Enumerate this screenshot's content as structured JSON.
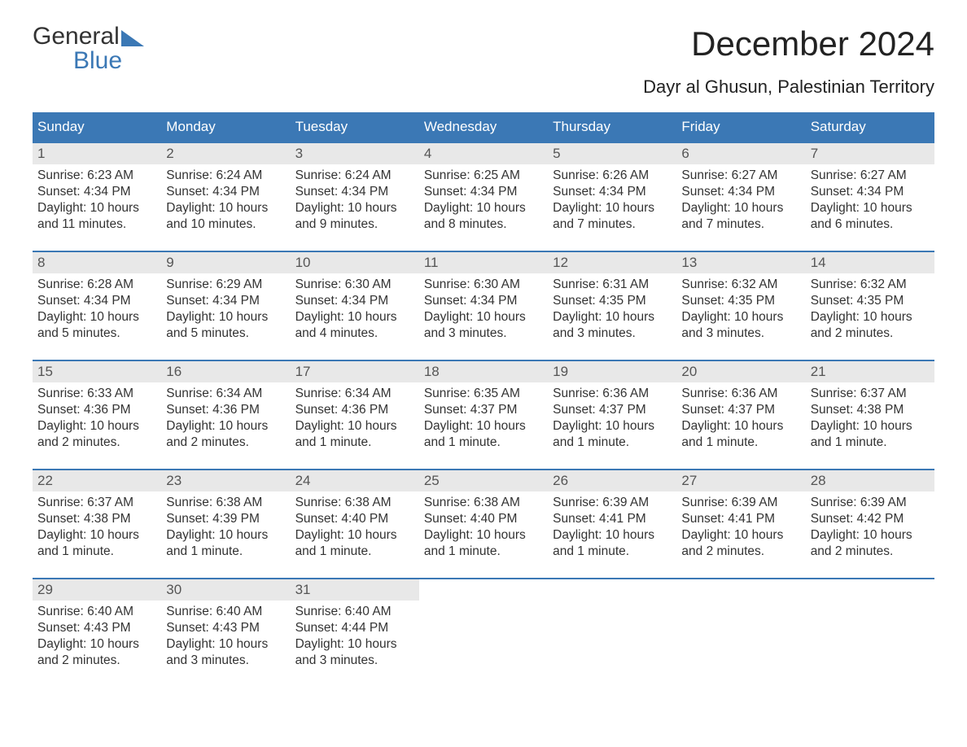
{
  "logo": {
    "word1": "General",
    "word2": "Blue"
  },
  "title": "December 2024",
  "subtitle": "Dayr al Ghusun, Palestinian Territory",
  "colors": {
    "header_bg": "#3b78b5",
    "daynum_bg": "#e8e8e8",
    "text": "#333333",
    "row_border": "#3b78b5",
    "background": "#ffffff"
  },
  "day_headers": [
    "Sunday",
    "Monday",
    "Tuesday",
    "Wednesday",
    "Thursday",
    "Friday",
    "Saturday"
  ],
  "typography": {
    "title_fontsize": 42,
    "subtitle_fontsize": 22,
    "dayheader_fontsize": 17,
    "body_fontsize": 15.5
  },
  "weeks": [
    [
      {
        "n": "1",
        "sr": "Sunrise: 6:23 AM",
        "ss": "Sunset: 4:34 PM",
        "dl1": "Daylight: 10 hours",
        "dl2": "and 11 minutes."
      },
      {
        "n": "2",
        "sr": "Sunrise: 6:24 AM",
        "ss": "Sunset: 4:34 PM",
        "dl1": "Daylight: 10 hours",
        "dl2": "and 10 minutes."
      },
      {
        "n": "3",
        "sr": "Sunrise: 6:24 AM",
        "ss": "Sunset: 4:34 PM",
        "dl1": "Daylight: 10 hours",
        "dl2": "and 9 minutes."
      },
      {
        "n": "4",
        "sr": "Sunrise: 6:25 AM",
        "ss": "Sunset: 4:34 PM",
        "dl1": "Daylight: 10 hours",
        "dl2": "and 8 minutes."
      },
      {
        "n": "5",
        "sr": "Sunrise: 6:26 AM",
        "ss": "Sunset: 4:34 PM",
        "dl1": "Daylight: 10 hours",
        "dl2": "and 7 minutes."
      },
      {
        "n": "6",
        "sr": "Sunrise: 6:27 AM",
        "ss": "Sunset: 4:34 PM",
        "dl1": "Daylight: 10 hours",
        "dl2": "and 7 minutes."
      },
      {
        "n": "7",
        "sr": "Sunrise: 6:27 AM",
        "ss": "Sunset: 4:34 PM",
        "dl1": "Daylight: 10 hours",
        "dl2": "and 6 minutes."
      }
    ],
    [
      {
        "n": "8",
        "sr": "Sunrise: 6:28 AM",
        "ss": "Sunset: 4:34 PM",
        "dl1": "Daylight: 10 hours",
        "dl2": "and 5 minutes."
      },
      {
        "n": "9",
        "sr": "Sunrise: 6:29 AM",
        "ss": "Sunset: 4:34 PM",
        "dl1": "Daylight: 10 hours",
        "dl2": "and 5 minutes."
      },
      {
        "n": "10",
        "sr": "Sunrise: 6:30 AM",
        "ss": "Sunset: 4:34 PM",
        "dl1": "Daylight: 10 hours",
        "dl2": "and 4 minutes."
      },
      {
        "n": "11",
        "sr": "Sunrise: 6:30 AM",
        "ss": "Sunset: 4:34 PM",
        "dl1": "Daylight: 10 hours",
        "dl2": "and 3 minutes."
      },
      {
        "n": "12",
        "sr": "Sunrise: 6:31 AM",
        "ss": "Sunset: 4:35 PM",
        "dl1": "Daylight: 10 hours",
        "dl2": "and 3 minutes."
      },
      {
        "n": "13",
        "sr": "Sunrise: 6:32 AM",
        "ss": "Sunset: 4:35 PM",
        "dl1": "Daylight: 10 hours",
        "dl2": "and 3 minutes."
      },
      {
        "n": "14",
        "sr": "Sunrise: 6:32 AM",
        "ss": "Sunset: 4:35 PM",
        "dl1": "Daylight: 10 hours",
        "dl2": "and 2 minutes."
      }
    ],
    [
      {
        "n": "15",
        "sr": "Sunrise: 6:33 AM",
        "ss": "Sunset: 4:36 PM",
        "dl1": "Daylight: 10 hours",
        "dl2": "and 2 minutes."
      },
      {
        "n": "16",
        "sr": "Sunrise: 6:34 AM",
        "ss": "Sunset: 4:36 PM",
        "dl1": "Daylight: 10 hours",
        "dl2": "and 2 minutes."
      },
      {
        "n": "17",
        "sr": "Sunrise: 6:34 AM",
        "ss": "Sunset: 4:36 PM",
        "dl1": "Daylight: 10 hours",
        "dl2": "and 1 minute."
      },
      {
        "n": "18",
        "sr": "Sunrise: 6:35 AM",
        "ss": "Sunset: 4:37 PM",
        "dl1": "Daylight: 10 hours",
        "dl2": "and 1 minute."
      },
      {
        "n": "19",
        "sr": "Sunrise: 6:36 AM",
        "ss": "Sunset: 4:37 PM",
        "dl1": "Daylight: 10 hours",
        "dl2": "and 1 minute."
      },
      {
        "n": "20",
        "sr": "Sunrise: 6:36 AM",
        "ss": "Sunset: 4:37 PM",
        "dl1": "Daylight: 10 hours",
        "dl2": "and 1 minute."
      },
      {
        "n": "21",
        "sr": "Sunrise: 6:37 AM",
        "ss": "Sunset: 4:38 PM",
        "dl1": "Daylight: 10 hours",
        "dl2": "and 1 minute."
      }
    ],
    [
      {
        "n": "22",
        "sr": "Sunrise: 6:37 AM",
        "ss": "Sunset: 4:38 PM",
        "dl1": "Daylight: 10 hours",
        "dl2": "and 1 minute."
      },
      {
        "n": "23",
        "sr": "Sunrise: 6:38 AM",
        "ss": "Sunset: 4:39 PM",
        "dl1": "Daylight: 10 hours",
        "dl2": "and 1 minute."
      },
      {
        "n": "24",
        "sr": "Sunrise: 6:38 AM",
        "ss": "Sunset: 4:40 PM",
        "dl1": "Daylight: 10 hours",
        "dl2": "and 1 minute."
      },
      {
        "n": "25",
        "sr": "Sunrise: 6:38 AM",
        "ss": "Sunset: 4:40 PM",
        "dl1": "Daylight: 10 hours",
        "dl2": "and 1 minute."
      },
      {
        "n": "26",
        "sr": "Sunrise: 6:39 AM",
        "ss": "Sunset: 4:41 PM",
        "dl1": "Daylight: 10 hours",
        "dl2": "and 1 minute."
      },
      {
        "n": "27",
        "sr": "Sunrise: 6:39 AM",
        "ss": "Sunset: 4:41 PM",
        "dl1": "Daylight: 10 hours",
        "dl2": "and 2 minutes."
      },
      {
        "n": "28",
        "sr": "Sunrise: 6:39 AM",
        "ss": "Sunset: 4:42 PM",
        "dl1": "Daylight: 10 hours",
        "dl2": "and 2 minutes."
      }
    ],
    [
      {
        "n": "29",
        "sr": "Sunrise: 6:40 AM",
        "ss": "Sunset: 4:43 PM",
        "dl1": "Daylight: 10 hours",
        "dl2": "and 2 minutes."
      },
      {
        "n": "30",
        "sr": "Sunrise: 6:40 AM",
        "ss": "Sunset: 4:43 PM",
        "dl1": "Daylight: 10 hours",
        "dl2": "and 3 minutes."
      },
      {
        "n": "31",
        "sr": "Sunrise: 6:40 AM",
        "ss": "Sunset: 4:44 PM",
        "dl1": "Daylight: 10 hours",
        "dl2": "and 3 minutes."
      },
      {
        "empty": true
      },
      {
        "empty": true
      },
      {
        "empty": true
      },
      {
        "empty": true
      }
    ]
  ]
}
